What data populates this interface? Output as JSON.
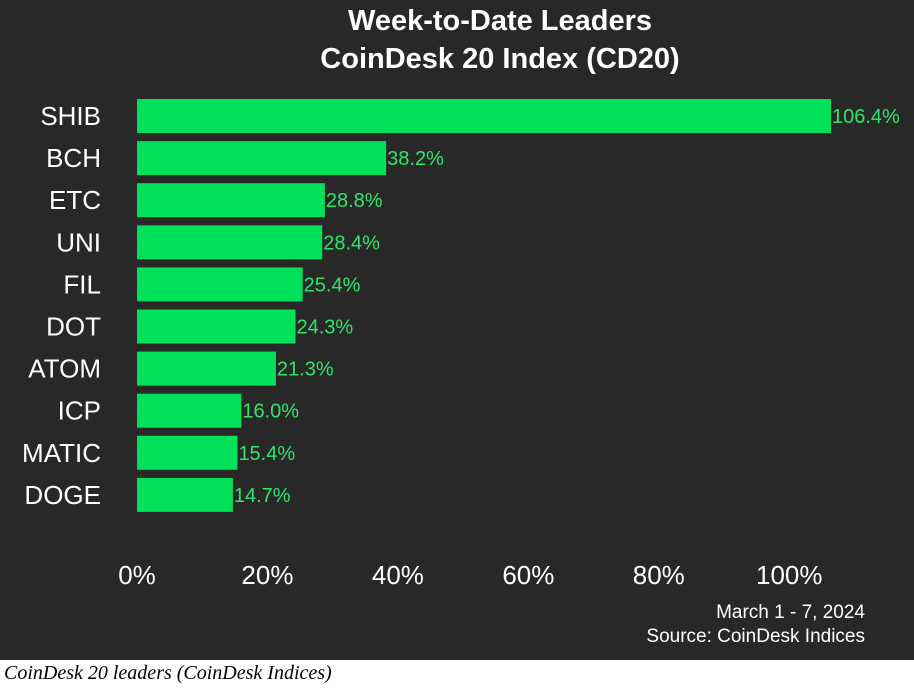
{
  "chart_data": {
    "type": "bar",
    "orientation": "horizontal",
    "title": "Week-to-Date Leaders",
    "subtitle": "CoinDesk 20 Index (CD20)",
    "categories": [
      "SHIB",
      "BCH",
      "ETC",
      "UNI",
      "FIL",
      "DOT",
      "ATOM",
      "ICP",
      "MATIC",
      "DOGE"
    ],
    "values": [
      106.4,
      38.2,
      28.8,
      28.4,
      25.4,
      24.3,
      21.3,
      16.0,
      15.4,
      14.7
    ],
    "value_labels": [
      "106.4%",
      "38.2%",
      "28.8%",
      "28.4%",
      "25.4%",
      "24.3%",
      "21.3%",
      "16.0%",
      "15.4%",
      "14.7%"
    ],
    "xlim": [
      0,
      106.4
    ],
    "xticks": [
      0,
      20,
      40,
      60,
      80,
      100
    ],
    "xtick_labels": [
      "0%",
      "20%",
      "40%",
      "60%",
      "80%",
      "100%"
    ],
    "xlabel": "",
    "ylabel": "",
    "grid": false,
    "bar_color": "#00e05a",
    "label_color": "#2ee56b",
    "background": "#282828",
    "date_range": "March 1 - 7, 2024",
    "source": "Source: CoinDesk Indices"
  },
  "caption": "CoinDesk 20 leaders (CoinDesk Indices)"
}
